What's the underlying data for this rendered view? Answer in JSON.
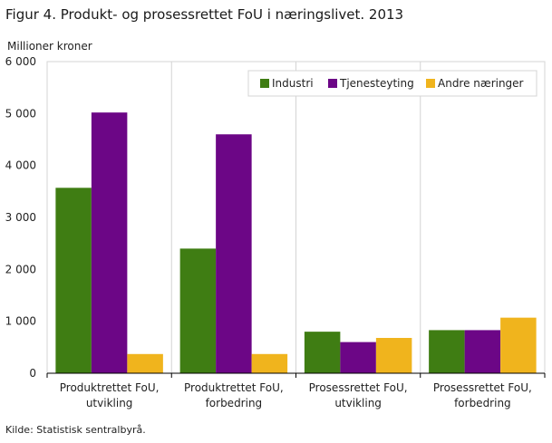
{
  "figure_title": "Figur 4. Produkt- og prosessrettet FoU i næringslivet. 2013",
  "source": "Kilde: Statistisk sentralbyrå.",
  "chart_data": {
    "type": "bar",
    "ylabel": "Millioner  kroner",
    "xlabel": "",
    "ylim": [
      0,
      6000
    ],
    "yticks": [
      0,
      1000,
      2000,
      3000,
      4000,
      5000,
      6000
    ],
    "ytick_labels": [
      "0",
      "1 000",
      "2 000",
      "3 000",
      "4 000",
      "5 000",
      "6 000"
    ],
    "categories": [
      [
        "Produktrettet FoU,",
        "utvikling"
      ],
      [
        "Produktrettet FoU,",
        "forbedring"
      ],
      [
        "Prosessrettet FoU,",
        "utvikling"
      ],
      [
        "Prosessrettet FoU,",
        "forbedring"
      ]
    ],
    "series": [
      {
        "name": "Industri",
        "color": "#3f7d13",
        "values": [
          3570,
          2400,
          800,
          830
        ]
      },
      {
        "name": "Tjenesteyting",
        "color": "#6c0686",
        "values": [
          5020,
          4600,
          600,
          830
        ]
      },
      {
        "name": "Andre næringer",
        "color": "#f0b41d",
        "values": [
          370,
          370,
          680,
          1070
        ]
      }
    ],
    "grid": "vertical separators",
    "legend_position": "top-right"
  }
}
